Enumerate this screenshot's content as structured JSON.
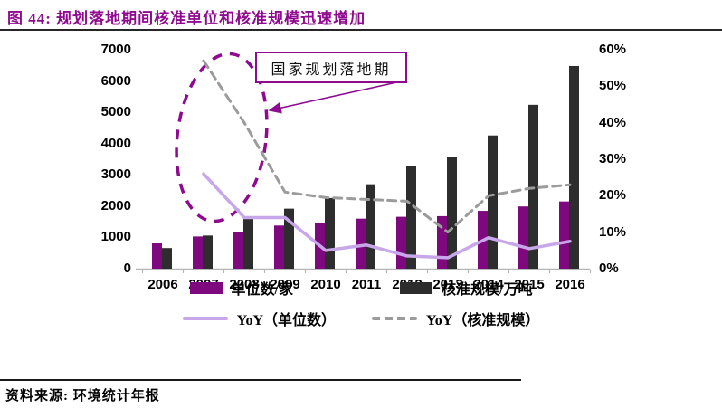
{
  "title": "图 44: 规划落地期间核准单位和核准规模迅速增加",
  "source": "资料来源: 环境统计年报",
  "colors": {
    "title": "#8E0A8E",
    "bar_units": "#7E087E",
    "bar_scale": "#2D2D2D",
    "line_yoy_units": "#C7A6EA",
    "line_yoy_scale": "#9B9B9B",
    "annotation": "#8E0A8E",
    "axis": "#B5B5B5"
  },
  "legend": {
    "items": [
      {
        "label": "单位数/家"
      },
      {
        "label": "核准规模/万吨"
      },
      {
        "label": "YoY（单位数）"
      },
      {
        "label": "YoY（核准规模）"
      }
    ]
  },
  "chart_data": {
    "type": "bar",
    "subtype": "combo-bar-line",
    "title": "规划落地期间核准单位和核准规模迅速增加",
    "categories": [
      "2006",
      "2007",
      "2008",
      "2009",
      "2010",
      "2011",
      "2012",
      "2013",
      "2014",
      "2015",
      "2016"
    ],
    "series": [
      {
        "name": "单位数/家",
        "type": "bar",
        "axis": "left",
        "values": [
          810,
          1030,
          1170,
          1380,
          1460,
          1600,
          1660,
          1680,
          1850,
          1990,
          2150
        ]
      },
      {
        "name": "核准规模/万吨",
        "type": "bar",
        "axis": "left",
        "values": [
          660,
          1060,
          1590,
          1920,
          2260,
          2700,
          3270,
          3570,
          4260,
          5240,
          6480
        ]
      },
      {
        "name": "YoY（单位数）",
        "type": "line",
        "style": "solid",
        "axis": "right",
        "values_pct": [
          null,
          26,
          14,
          14,
          5,
          6.5,
          3.5,
          3,
          8.5,
          5.5,
          7.5
        ]
      },
      {
        "name": "YoY（核准规模）",
        "type": "line",
        "style": "dashed",
        "axis": "right",
        "values_pct": [
          null,
          57,
          40,
          21,
          19.5,
          19,
          18.5,
          10,
          20,
          22,
          23
        ]
      }
    ],
    "left_axis": {
      "min": 0,
      "max": 7000,
      "ticks": [
        0,
        1000,
        2000,
        3000,
        4000,
        5000,
        6000,
        7000
      ]
    },
    "right_axis": {
      "min": "0%",
      "max": "60%",
      "ticks": [
        "0%",
        "10%",
        "20%",
        "30%",
        "40%",
        "50%",
        "60%"
      ]
    },
    "grid": false,
    "legend_position": "bottom",
    "annotation": {
      "text": "国家规划落地期"
    }
  }
}
